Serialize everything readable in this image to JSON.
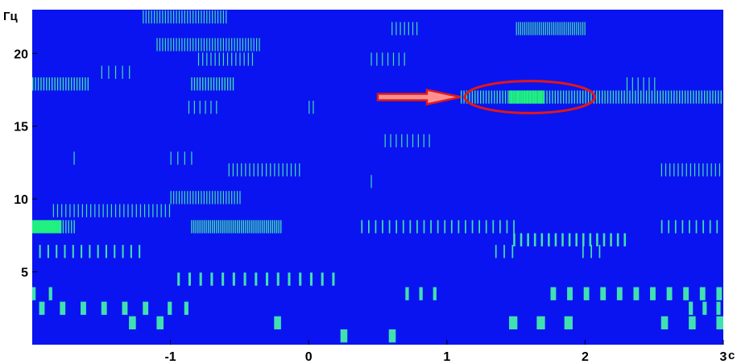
{
  "chart_data": {
    "type": "heatmap",
    "title": "",
    "xlabel": "с",
    "ylabel": "Гц",
    "xlim": [
      -2,
      3
    ],
    "ylim": [
      0,
      23
    ],
    "x_ticks": [
      -1,
      0,
      1,
      2,
      3
    ],
    "x_tick_labels": [
      "-1",
      "0",
      "1",
      "2",
      "3"
    ],
    "y_ticks": [
      5,
      10,
      15,
      20
    ],
    "y_tick_labels": [
      "5",
      "10",
      "15",
      "20"
    ],
    "grid": false,
    "colors": {
      "background": "#0a14f0",
      "band": "#40e0b0",
      "band_dense": "#20f080",
      "annotation": "#e01818",
      "arrow_fill": "#ff9090"
    },
    "bands": [
      {
        "freq": 22.5,
        "x0": -1.2,
        "x1": -0.6,
        "pitch": 0.02,
        "width": 0.006
      },
      {
        "freq": 21.7,
        "x0": 0.6,
        "x1": 0.8,
        "pitch": 0.03,
        "width": 0.006
      },
      {
        "freq": 21.7,
        "x0": 1.5,
        "x1": 2.0,
        "pitch": 0.015,
        "width": 0.006
      },
      {
        "freq": 20.6,
        "x0": -1.1,
        "x1": -0.35,
        "pitch": 0.02,
        "width": 0.006
      },
      {
        "freq": 19.6,
        "x0": -0.8,
        "x1": -0.4,
        "pitch": 0.03,
        "width": 0.006
      },
      {
        "freq": 19.6,
        "x0": 0.45,
        "x1": 0.7,
        "pitch": 0.04,
        "width": 0.006
      },
      {
        "freq": 18.7,
        "x0": -1.5,
        "x1": -1.3,
        "pitch": 0.05,
        "width": 0.006
      },
      {
        "freq": 17.9,
        "x0": -2.0,
        "x1": -1.6,
        "pitch": 0.02,
        "width": 0.008
      },
      {
        "freq": 17.9,
        "x0": -0.85,
        "x1": -0.55,
        "pitch": 0.02,
        "width": 0.008
      },
      {
        "freq": 17.9,
        "x0": 2.3,
        "x1": 2.5,
        "pitch": 0.04,
        "width": 0.006
      },
      {
        "freq": 17.0,
        "x0": 1.1,
        "x1": 3.0,
        "pitch": 0.02,
        "width": 0.008
      },
      {
        "freq": 17.0,
        "x0": 1.45,
        "x1": 1.7,
        "pitch": 0.008,
        "width": 0.008
      },
      {
        "freq": 16.3,
        "x0": -0.87,
        "x1": -0.65,
        "pitch": 0.04,
        "width": 0.006
      },
      {
        "freq": 16.3,
        "x0": 0.0,
        "x1": 0.05,
        "pitch": 0.03,
        "width": 0.006
      },
      {
        "freq": 14.0,
        "x0": 0.55,
        "x1": 0.87,
        "pitch": 0.04,
        "width": 0.006
      },
      {
        "freq": 12.8,
        "x0": -1.7,
        "x1": -1.68,
        "pitch": 0.05,
        "width": 0.006
      },
      {
        "freq": 12.8,
        "x0": -1.0,
        "x1": -0.85,
        "pitch": 0.05,
        "width": 0.006
      },
      {
        "freq": 12.0,
        "x0": -0.58,
        "x1": -0.05,
        "pitch": 0.03,
        "width": 0.006
      },
      {
        "freq": 12.0,
        "x0": 2.55,
        "x1": 3.0,
        "pitch": 0.03,
        "width": 0.006
      },
      {
        "freq": 11.2,
        "x0": 0.45,
        "x1": 0.47,
        "pitch": 0.05,
        "width": 0.006
      },
      {
        "freq": 10.1,
        "x0": -1.0,
        "x1": -0.5,
        "pitch": 0.02,
        "width": 0.006
      },
      {
        "freq": 9.2,
        "x0": -1.85,
        "x1": -1.0,
        "pitch": 0.03,
        "width": 0.006
      },
      {
        "freq": 8.1,
        "x0": -2.0,
        "x1": -1.8,
        "pitch": 0.01,
        "width": 0.012
      },
      {
        "freq": 8.1,
        "x0": -1.8,
        "x1": -1.7,
        "pitch": 0.02,
        "width": 0.008
      },
      {
        "freq": 8.1,
        "x0": -0.85,
        "x1": -0.2,
        "pitch": 0.015,
        "width": 0.008
      },
      {
        "freq": 8.1,
        "x0": 0.38,
        "x1": 1.5,
        "pitch": 0.05,
        "width": 0.01
      },
      {
        "freq": 8.1,
        "x0": 2.55,
        "x1": 3.0,
        "pitch": 0.05,
        "width": 0.01
      },
      {
        "freq": 6.4,
        "x0": -1.95,
        "x1": -1.2,
        "pitch": 0.06,
        "width": 0.012
      },
      {
        "freq": 6.4,
        "x0": 1.35,
        "x1": 1.5,
        "pitch": 0.06,
        "width": 0.01
      },
      {
        "freq": 6.4,
        "x0": 1.98,
        "x1": 2.1,
        "pitch": 0.06,
        "width": 0.01
      },
      {
        "freq": 7.2,
        "x0": 1.48,
        "x1": 2.3,
        "pitch": 0.05,
        "width": 0.015
      },
      {
        "freq": 4.5,
        "x0": -0.95,
        "x1": 0.2,
        "pitch": 0.08,
        "width": 0.018
      },
      {
        "freq": 3.5,
        "x0": -2.0,
        "x1": -1.8,
        "pitch": 0.12,
        "width": 0.025
      },
      {
        "freq": 3.5,
        "x0": 0.7,
        "x1": 0.95,
        "pitch": 0.1,
        "width": 0.025
      },
      {
        "freq": 3.5,
        "x0": 1.75,
        "x1": 3.0,
        "pitch": 0.12,
        "width": 0.04
      },
      {
        "freq": 2.5,
        "x0": -1.95,
        "x1": -1.2,
        "pitch": 0.15,
        "width": 0.04
      },
      {
        "freq": 2.5,
        "x0": -1.02,
        "x1": -0.9,
        "pitch": 0.12,
        "width": 0.03
      },
      {
        "freq": 2.5,
        "x0": 2.75,
        "x1": 3.0,
        "pitch": 0.1,
        "width": 0.03
      },
      {
        "freq": 1.5,
        "x0": -1.3,
        "x1": -1.1,
        "pitch": 0.2,
        "width": 0.05
      },
      {
        "freq": 1.5,
        "x0": -0.25,
        "x1": -0.2,
        "pitch": 0.2,
        "width": 0.05
      },
      {
        "freq": 1.5,
        "x0": 1.45,
        "x1": 1.9,
        "pitch": 0.2,
        "width": 0.06
      },
      {
        "freq": 1.5,
        "x0": 2.55,
        "x1": 3.0,
        "pitch": 0.2,
        "width": 0.05
      },
      {
        "freq": 0.6,
        "x0": 0.23,
        "x1": 0.6,
        "pitch": 0.35,
        "width": 0.05
      }
    ],
    "annotations": [
      {
        "type": "arrow",
        "from": [
          0.5,
          17.0
        ],
        "to": [
          1.1,
          17.0
        ]
      },
      {
        "type": "ellipse",
        "center": [
          1.6,
          17.0
        ],
        "rx": 0.47,
        "ry": 1.1
      }
    ]
  }
}
